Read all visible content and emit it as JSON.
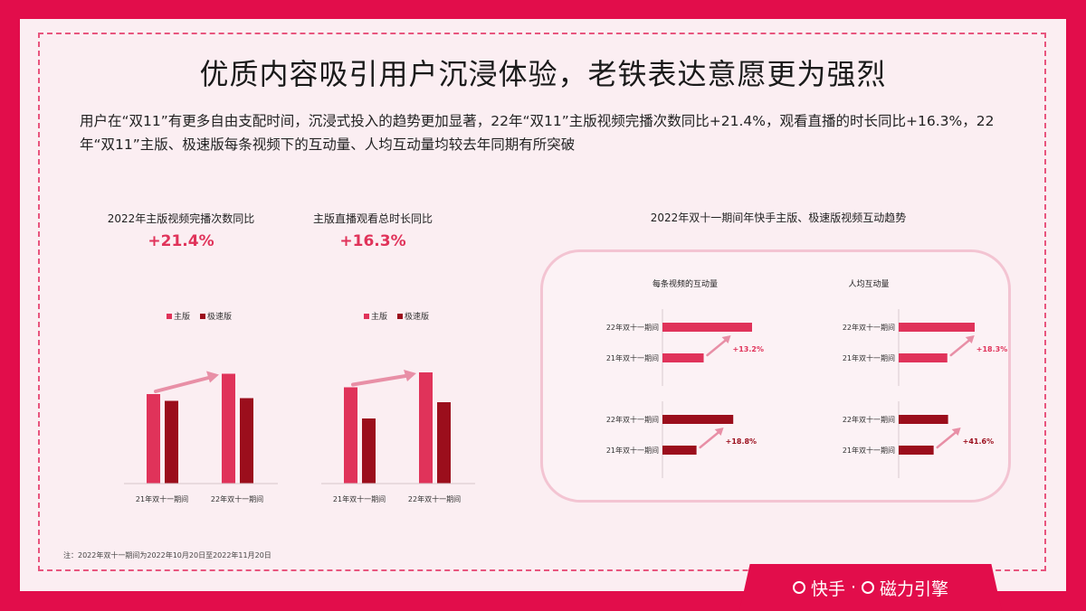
{
  "title": "优质内容吸引用户沉浸体验，老铁表达意愿更为强烈",
  "description": "用户在“双11”有更多自由支配时间，沉浸式投入的趋势更加显著，22年“双11”主版视频完播次数同比+21.4%，观看直播的时长同比+16.3%，22年“双11”主版、极速版每条视频下的互动量、人均互动量均较去年同期有所突破",
  "footnote": "注：2022年双十一期间为2022年10月20日至2022年11月20日",
  "brand": {
    "left": "快手",
    "sep": "·",
    "right": "磁力引擎"
  },
  "colors": {
    "main": "#e0335a",
    "lite": "#9b0e1c",
    "arrow": "#e88fa6"
  },
  "chart_data": [
    {
      "type": "bar",
      "title": "2022年主版视频完播次数同比",
      "headline": "+21.4%",
      "categories": [
        "21年双十一期间",
        "22年双十一期间"
      ],
      "legend": [
        "主版",
        "极速版"
      ],
      "series": [
        {
          "name": "主版",
          "values": [
            0.66,
            0.81
          ]
        },
        {
          "name": "极速版",
          "values": [
            0.61,
            0.63
          ]
        }
      ],
      "ylim": [
        0,
        1
      ]
    },
    {
      "type": "bar",
      "title": "主版直播观看总时长同比",
      "headline": "+16.3%",
      "categories": [
        "21年双十一期间",
        "22年双十一期间"
      ],
      "legend": [
        "主版",
        "极速版"
      ],
      "series": [
        {
          "name": "主版",
          "values": [
            0.71,
            0.82
          ]
        },
        {
          "name": "极速版",
          "values": [
            0.48,
            0.6
          ]
        }
      ],
      "ylim": [
        0,
        1
      ]
    },
    {
      "type": "bar",
      "orientation": "horizontal",
      "group_title": "2022年双十一期间年快手主版、极速版视频互动趋势",
      "panels": [
        {
          "title": "每条视频的互动量",
          "groups": [
            {
              "series": "主版",
              "categories": [
                "22年双十一期间",
                "21年双十一期间"
              ],
              "values": [
                1.0,
                0.46
              ],
              "growth": "+13.2%"
            },
            {
              "series": "极速版",
              "categories": [
                "22年双十一期间",
                "21年双十一期间"
              ],
              "values": [
                0.79,
                0.38
              ],
              "growth": "+18.8%"
            }
          ]
        },
        {
          "title": "人均互动量",
          "groups": [
            {
              "series": "主版",
              "categories": [
                "22年双十一期间",
                "21年双十一期间"
              ],
              "values": [
                1.0,
                0.64
              ],
              "growth": "+18.3%"
            },
            {
              "series": "极速版",
              "categories": [
                "22年双十一期间",
                "21年双十一期间"
              ],
              "values": [
                0.65,
                0.46
              ],
              "growth": "+41.6%"
            }
          ]
        }
      ]
    }
  ]
}
